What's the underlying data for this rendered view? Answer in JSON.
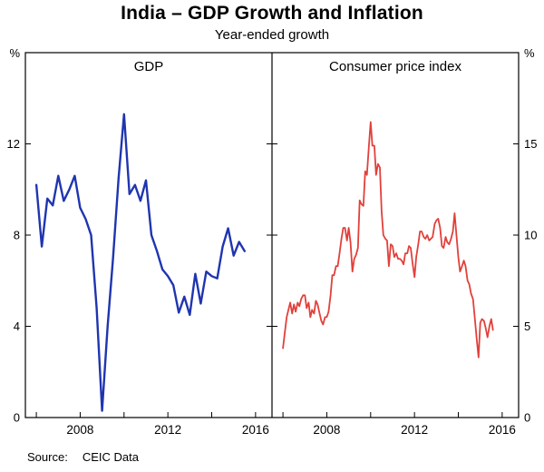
{
  "chart_data": {
    "type": "line",
    "title": "India – GDP Growth and Inflation",
    "subtitle": "Year-ended growth",
    "source_label": "Source:",
    "source": "CEIC Data",
    "layout": "two-panel",
    "panels": [
      {
        "title": "GDP",
        "axis_side": "left",
        "unit": "%",
        "x_domain": [
          2005.5,
          2016.75
        ],
        "y_domain": [
          0,
          16
        ],
        "y_ticks": [
          0,
          4,
          8,
          12
        ],
        "x_ticks": [
          2006,
          2008,
          2010,
          2012,
          2014,
          2016
        ],
        "x_label_ticks": [
          2008,
          2012,
          2016
        ],
        "series": [
          {
            "name": "GDP",
            "slug": "gdp",
            "color": "#1f35b0",
            "width": 2.4,
            "points": [
              [
                2006.0,
                10.2
              ],
              [
                2006.25,
                7.5
              ],
              [
                2006.5,
                9.6
              ],
              [
                2006.75,
                9.3
              ],
              [
                2007.0,
                10.6
              ],
              [
                2007.25,
                9.5
              ],
              [
                2007.5,
                10.0
              ],
              [
                2007.75,
                10.6
              ],
              [
                2008.0,
                9.2
              ],
              [
                2008.25,
                8.7
              ],
              [
                2008.5,
                8.0
              ],
              [
                2008.75,
                4.8
              ],
              [
                2009.0,
                0.3
              ],
              [
                2009.25,
                4.0
              ],
              [
                2009.5,
                7.0
              ],
              [
                2009.75,
                10.5
              ],
              [
                2010.0,
                13.3
              ],
              [
                2010.25,
                9.8
              ],
              [
                2010.5,
                10.2
              ],
              [
                2010.75,
                9.5
              ],
              [
                2011.0,
                10.4
              ],
              [
                2011.25,
                8.0
              ],
              [
                2011.5,
                7.3
              ],
              [
                2011.75,
                6.5
              ],
              [
                2012.0,
                6.2
              ],
              [
                2012.25,
                5.8
              ],
              [
                2012.5,
                4.6
              ],
              [
                2012.75,
                5.3
              ],
              [
                2013.0,
                4.5
              ],
              [
                2013.25,
                6.3
              ],
              [
                2013.5,
                5.0
              ],
              [
                2013.75,
                6.4
              ],
              [
                2014.0,
                6.2
              ],
              [
                2014.25,
                6.1
              ],
              [
                2014.5,
                7.5
              ],
              [
                2014.75,
                8.3
              ],
              [
                2015.0,
                7.1
              ],
              [
                2015.25,
                7.7
              ],
              [
                2015.5,
                7.3
              ]
            ]
          }
        ]
      },
      {
        "title": "Consumer price index",
        "axis_side": "right",
        "unit": "%",
        "x_domain": [
          2005.5,
          2016.75
        ],
        "y_domain": [
          0,
          20
        ],
        "y_ticks": [
          0,
          5,
          10,
          15
        ],
        "x_ticks": [
          2006,
          2008,
          2010,
          2012,
          2014,
          2016
        ],
        "x_label_ticks": [
          2008,
          2012,
          2016
        ],
        "series": [
          {
            "name": "Consumer price index",
            "slug": "cpi",
            "color": "#e2403a",
            "width": 1.8,
            "points": [
              [
                2006.0,
                3.8
              ],
              [
                2006.08,
                4.6
              ],
              [
                2006.17,
                5.5
              ],
              [
                2006.25,
                5.9
              ],
              [
                2006.33,
                6.3
              ],
              [
                2006.42,
                5.7
              ],
              [
                2006.5,
                6.2
              ],
              [
                2006.58,
                5.8
              ],
              [
                2006.67,
                6.3
              ],
              [
                2006.75,
                6.1
              ],
              [
                2006.83,
                6.5
              ],
              [
                2006.92,
                6.7
              ],
              [
                2007.0,
                6.7
              ],
              [
                2007.08,
                6.0
              ],
              [
                2007.17,
                6.3
              ],
              [
                2007.25,
                5.5
              ],
              [
                2007.33,
                5.9
              ],
              [
                2007.42,
                5.7
              ],
              [
                2007.5,
                6.4
              ],
              [
                2007.58,
                6.2
              ],
              [
                2007.67,
                5.7
              ],
              [
                2007.75,
                5.3
              ],
              [
                2007.83,
                5.1
              ],
              [
                2007.92,
                5.5
              ],
              [
                2008.0,
                5.5
              ],
              [
                2008.08,
                5.8
              ],
              [
                2008.17,
                6.7
              ],
              [
                2008.25,
                7.8
              ],
              [
                2008.33,
                7.8
              ],
              [
                2008.42,
                8.3
              ],
              [
                2008.5,
                8.3
              ],
              [
                2008.58,
                9.0
              ],
              [
                2008.67,
                9.8
              ],
              [
                2008.75,
                10.4
              ],
              [
                2008.83,
                10.4
              ],
              [
                2008.92,
                9.7
              ],
              [
                2009.0,
                10.4
              ],
              [
                2009.08,
                9.6
              ],
              [
                2009.17,
                8.0
              ],
              [
                2009.25,
                8.7
              ],
              [
                2009.33,
                8.9
              ],
              [
                2009.42,
                9.3
              ],
              [
                2009.5,
                11.9
              ],
              [
                2009.58,
                11.7
              ],
              [
                2009.67,
                11.6
              ],
              [
                2009.75,
                13.5
              ],
              [
                2009.83,
                13.3
              ],
              [
                2009.92,
                14.9
              ],
              [
                2010.0,
                16.2
              ],
              [
                2010.08,
                14.9
              ],
              [
                2010.17,
                14.9
              ],
              [
                2010.25,
                13.3
              ],
              [
                2010.33,
                13.9
              ],
              [
                2010.42,
                13.7
              ],
              [
                2010.5,
                11.3
              ],
              [
                2010.58,
                10.0
              ],
              [
                2010.67,
                9.8
              ],
              [
                2010.75,
                9.7
              ],
              [
                2010.83,
                8.3
              ],
              [
                2010.92,
                9.5
              ],
              [
                2011.0,
                9.4
              ],
              [
                2011.08,
                8.8
              ],
              [
                2011.17,
                9.0
              ],
              [
                2011.25,
                8.7
              ],
              [
                2011.33,
                8.7
              ],
              [
                2011.42,
                8.6
              ],
              [
                2011.5,
                8.4
              ],
              [
                2011.58,
                9.0
              ],
              [
                2011.67,
                9.0
              ],
              [
                2011.75,
                9.4
              ],
              [
                2011.83,
                9.3
              ],
              [
                2011.92,
                8.4
              ],
              [
                2012.0,
                7.7
              ],
              [
                2012.08,
                8.8
              ],
              [
                2012.17,
                9.5
              ],
              [
                2012.25,
                10.2
              ],
              [
                2012.33,
                10.2
              ],
              [
                2012.42,
                9.9
              ],
              [
                2012.5,
                9.8
              ],
              [
                2012.58,
                10.0
              ],
              [
                2012.67,
                9.7
              ],
              [
                2012.75,
                9.8
              ],
              [
                2012.83,
                9.9
              ],
              [
                2012.92,
                10.6
              ],
              [
                2013.0,
                10.8
              ],
              [
                2013.08,
                10.9
              ],
              [
                2013.17,
                10.4
              ],
              [
                2013.25,
                9.4
              ],
              [
                2013.33,
                9.3
              ],
              [
                2013.42,
                9.9
              ],
              [
                2013.5,
                9.6
              ],
              [
                2013.58,
                9.5
              ],
              [
                2013.67,
                9.8
              ],
              [
                2013.75,
                10.2
              ],
              [
                2013.83,
                11.2
              ],
              [
                2013.92,
                9.9
              ],
              [
                2014.0,
                8.8
              ],
              [
                2014.08,
                8.0
              ],
              [
                2014.17,
                8.3
              ],
              [
                2014.25,
                8.6
              ],
              [
                2014.33,
                8.3
              ],
              [
                2014.42,
                7.5
              ],
              [
                2014.5,
                7.3
              ],
              [
                2014.58,
                6.8
              ],
              [
                2014.67,
                6.5
              ],
              [
                2014.75,
                5.5
              ],
              [
                2014.83,
                4.4
              ],
              [
                2014.92,
                3.3
              ],
              [
                2015.0,
                5.2
              ],
              [
                2015.08,
                5.4
              ],
              [
                2015.17,
                5.3
              ],
              [
                2015.25,
                4.9
              ],
              [
                2015.33,
                4.4
              ],
              [
                2015.42,
                5.0
              ],
              [
                2015.5,
                5.4
              ],
              [
                2015.58,
                4.8
              ]
            ]
          }
        ]
      }
    ]
  }
}
